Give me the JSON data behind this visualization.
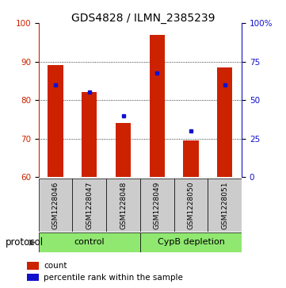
{
  "title": "GDS4828 / ILMN_2385239",
  "samples": [
    "GSM1228046",
    "GSM1228047",
    "GSM1228048",
    "GSM1228049",
    "GSM1228050",
    "GSM1228051"
  ],
  "count_values": [
    89.0,
    82.0,
    74.0,
    97.0,
    69.5,
    88.5
  ],
  "percentile_values": [
    60,
    55,
    40,
    68,
    30,
    60
  ],
  "ylim_left": [
    60,
    100
  ],
  "ylim_right": [
    0,
    100
  ],
  "yticks_left": [
    60,
    70,
    80,
    90,
    100
  ],
  "yticks_right": [
    0,
    25,
    50,
    75,
    100
  ],
  "yticks_right_labels": [
    "0",
    "25",
    "50",
    "75",
    "100%"
  ],
  "bar_color": "#cc2200",
  "dot_color": "#1111cc",
  "bar_width": 0.45,
  "control_label": "control",
  "depletion_label": "CypB depletion",
  "protocol_label": "protocol",
  "legend_count": "count",
  "legend_pct": "percentile rank within the sample",
  "label_bg_color": "#cccccc",
  "group_bg_color": "#90e870",
  "title_fontsize": 10,
  "tick_fontsize": 7.5,
  "sample_fontsize": 6.5,
  "group_fontsize": 8
}
